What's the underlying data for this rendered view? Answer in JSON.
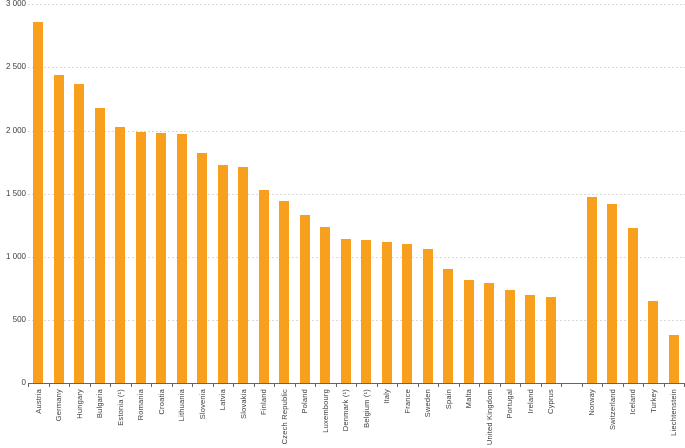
{
  "chart_data": {
    "type": "bar",
    "title": "",
    "xlabel": "",
    "ylabel": "",
    "ylim": [
      0,
      3000
    ],
    "grid": "horizontal-dashed",
    "legend": "none",
    "yticks": [
      {
        "value": 0,
        "label": "0"
      },
      {
        "value": 500,
        "label": "500"
      },
      {
        "value": 1000,
        "label": "1 000"
      },
      {
        "value": 1500,
        "label": "1 500"
      },
      {
        "value": 2000,
        "label": "2 000"
      },
      {
        "value": 2500,
        "label": "2 500"
      },
      {
        "value": 3000,
        "label": "3 000"
      }
    ],
    "categories": [
      "Austria",
      "Germany",
      "Hungary",
      "Bulgaria",
      "Estonia (¹)",
      "Romania",
      "Croatia",
      "Lithuania",
      "Slovenia",
      "Latvia",
      "Slovakia",
      "Finland",
      "Czech Republic",
      "Poland",
      "Luxembourg",
      "Denmark (¹)",
      "Belgium (¹)",
      "Italy",
      "France",
      "Sweden",
      "Spain",
      "Malta",
      "United Kingdom",
      "Portugal",
      "Ireland",
      "Cyprus",
      "Norway",
      "Switzerland",
      "Iceland",
      "Turkey",
      "Liechtenstein"
    ],
    "values": [
      2860,
      2440,
      2370,
      2180,
      2030,
      1990,
      1980,
      1970,
      1820,
      1730,
      1710,
      1530,
      1440,
      1330,
      1240,
      1140,
      1130,
      1120,
      1100,
      1060,
      900,
      820,
      790,
      740,
      700,
      680,
      1470,
      1420,
      1230,
      650,
      380
    ],
    "gap_after_index": 25,
    "colors": {
      "bar": "#F8A01E",
      "gridline": "#D9D9D9",
      "axis": "#666666",
      "text": "#404040"
    }
  }
}
